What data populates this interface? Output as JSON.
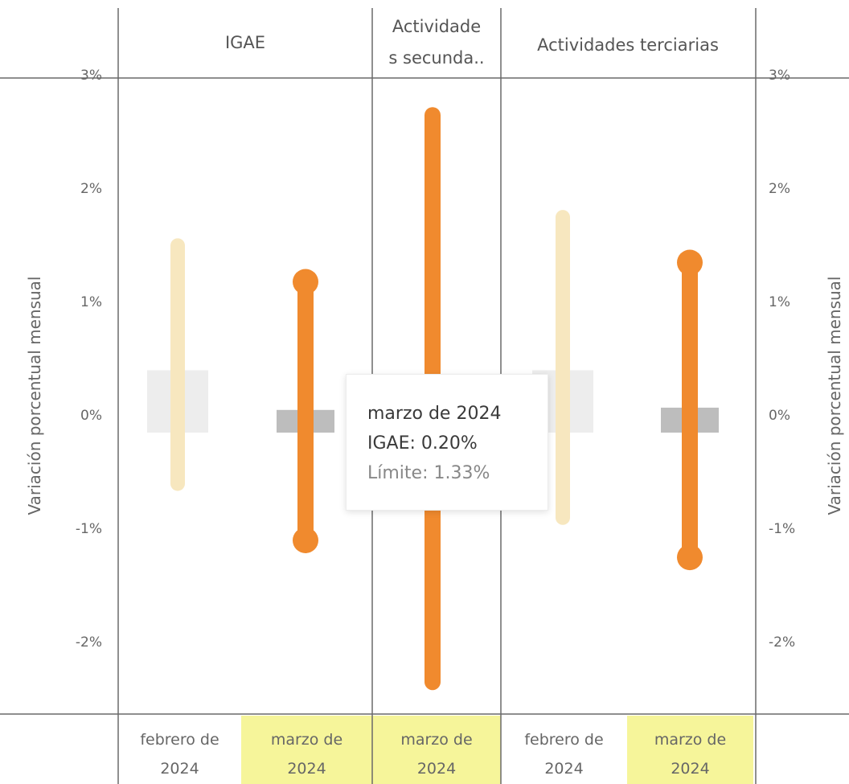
{
  "chart_data": {
    "type": "range-bar",
    "ylabel": "Variación porcentual mensual",
    "ylim": [
      -2.6,
      3.2
    ],
    "yticks": [
      "-2%",
      "-1%",
      "0%",
      "1%",
      "2%",
      "3%"
    ],
    "ytick_values": [
      -2,
      -1,
      0,
      1,
      2,
      3
    ],
    "panels": [
      {
        "name": "IGAE",
        "items": [
          {
            "category": "febrero de 2024",
            "highlighted": false,
            "value": 0.55,
            "upper": 1.65,
            "lower": -0.45
          },
          {
            "category": "marzo de 2024",
            "highlighted": true,
            "value": 0.2,
            "upper": 1.33,
            "lower": -0.95
          }
        ]
      },
      {
        "name": "Actividades secunda..",
        "items": [
          {
            "category": "marzo de 2024",
            "highlighted": true,
            "value": null,
            "upper": 2.8,
            "lower": -2.2
          }
        ]
      },
      {
        "name": "Actividades terciarias",
        "items": [
          {
            "category": "febrero de 2024",
            "highlighted": false,
            "value": 0.55,
            "upper": 1.9,
            "lower": -0.75
          },
          {
            "category": "marzo de 2024",
            "highlighted": true,
            "value": 0.22,
            "upper": 1.5,
            "lower": -1.1
          }
        ]
      }
    ],
    "tooltip": {
      "title": "marzo de 2024",
      "main": "IGAE: 0.20%",
      "limit": "Límite: 1.33%"
    },
    "colors": {
      "range_active": "#f08a2e",
      "range_faded": "#f7e7bf",
      "value_bar_active": "#bdbdbd",
      "value_bar_faded": "#ededed",
      "highlight_bg": "#f6f59a",
      "grid_line": "#6a6a6a"
    }
  }
}
